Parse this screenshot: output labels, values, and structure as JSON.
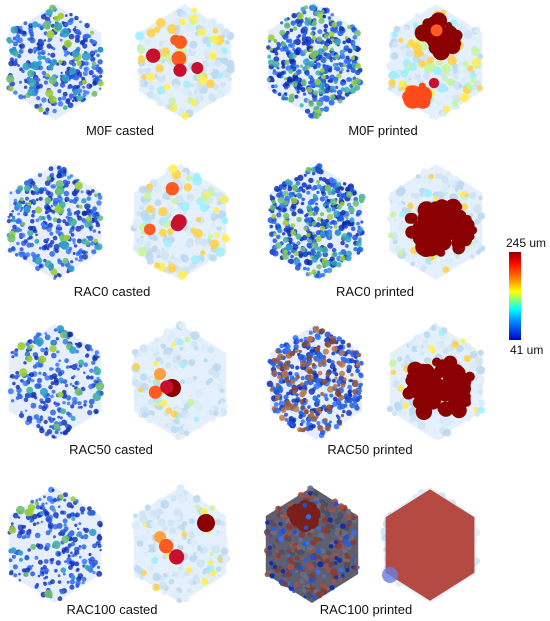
{
  "figure": {
    "panels": [
      {
        "id": "m0f-casted",
        "caption": "M0F casted",
        "style": "casted",
        "blob": "none",
        "spots": 6
      },
      {
        "id": "m0f-printed",
        "caption": "M0F printed",
        "style": "printed",
        "blob": "medium-red",
        "spots": 2
      },
      {
        "id": "rac0-casted",
        "caption": "RAC0 casted",
        "style": "casted",
        "blob": "none",
        "spots": 4
      },
      {
        "id": "rac0-printed",
        "caption": "RAC0 printed",
        "style": "printed",
        "blob": "large-red",
        "spots": 0
      },
      {
        "id": "rac50-casted",
        "caption": "RAC50 casted",
        "style": "casted-sparse",
        "blob": "small",
        "spots": 2
      },
      {
        "id": "rac50-printed",
        "caption": "RAC50 printed",
        "style": "printed-dense",
        "blob": "large-red",
        "spots": 0
      },
      {
        "id": "rac100-casted",
        "caption": "RAC100 casted",
        "style": "casted-sparse",
        "blob": "small",
        "spots": 2
      },
      {
        "id": "rac100-printed",
        "caption": "RAC100 printed",
        "style": "printed-full",
        "blob": "full-red",
        "spots": 0
      }
    ],
    "colorbar": {
      "max_label": "245 um",
      "min_label": "41 um",
      "colors": [
        "#8b0000",
        "#ff0000",
        "#ff7f00",
        "#ffff00",
        "#00ffff",
        "#0080ff",
        "#0000cd"
      ]
    }
  }
}
